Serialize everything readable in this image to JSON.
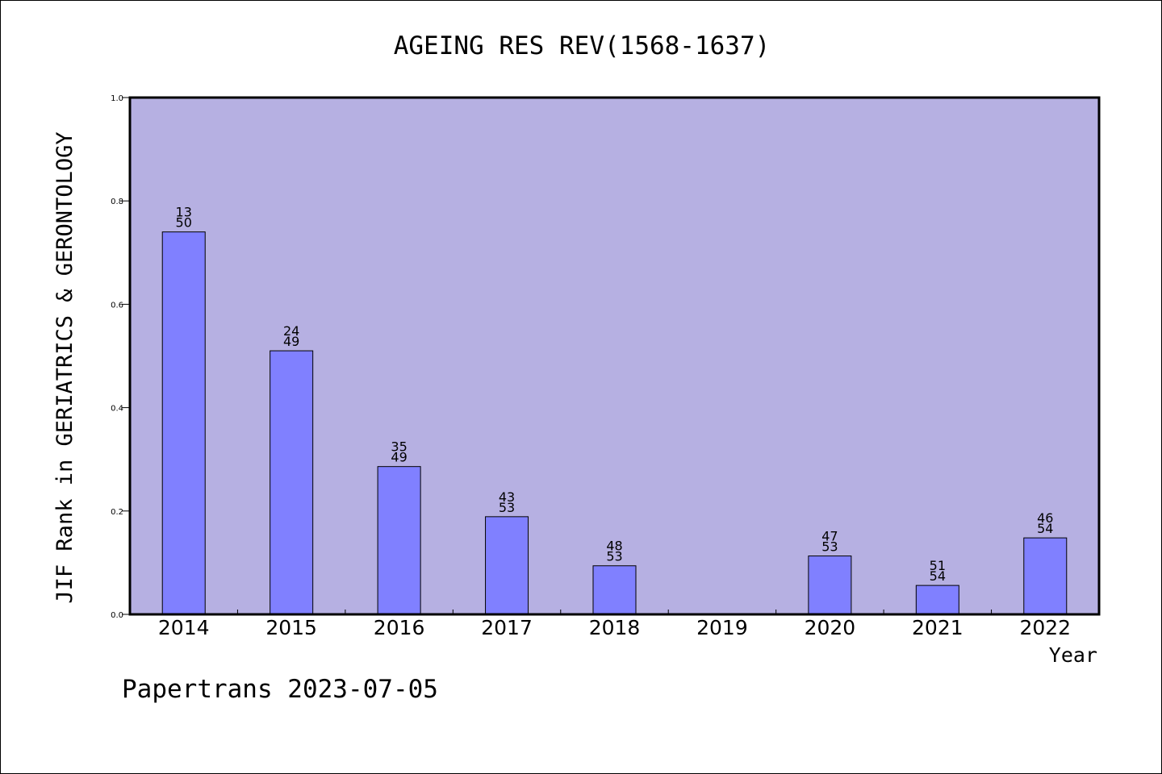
{
  "chart_data": {
    "type": "bar",
    "title": "AGEING RES REV(1568-1637)",
    "ylabel": "JIF Rank in GERIATRICS & GERONTOLOGY",
    "xlabel": "Year",
    "ylim": [
      0.0,
      1.0
    ],
    "yticks": [
      "0.0",
      "0.2",
      "0.4",
      "0.6",
      "0.8",
      "1.0"
    ],
    "grid": false,
    "categories": [
      "2014",
      "2015",
      "2016",
      "2017",
      "2018",
      "2019",
      "2020",
      "2021",
      "2022"
    ],
    "values": [
      0.74,
      0.51,
      0.286,
      0.189,
      0.094,
      null,
      0.113,
      0.056,
      0.148
    ],
    "rank": [
      "13",
      "24",
      "35",
      "43",
      "48",
      "",
      "47",
      "51",
      "46"
    ],
    "total": [
      "50",
      "49",
      "49",
      "53",
      "53",
      "",
      "53",
      "54",
      "54"
    ]
  },
  "footer": "Papertrans 2023-07-05",
  "colors": {
    "plot_bg": "#b6b0e2",
    "bar_fill": "#8080ff",
    "axis": "#000000"
  }
}
